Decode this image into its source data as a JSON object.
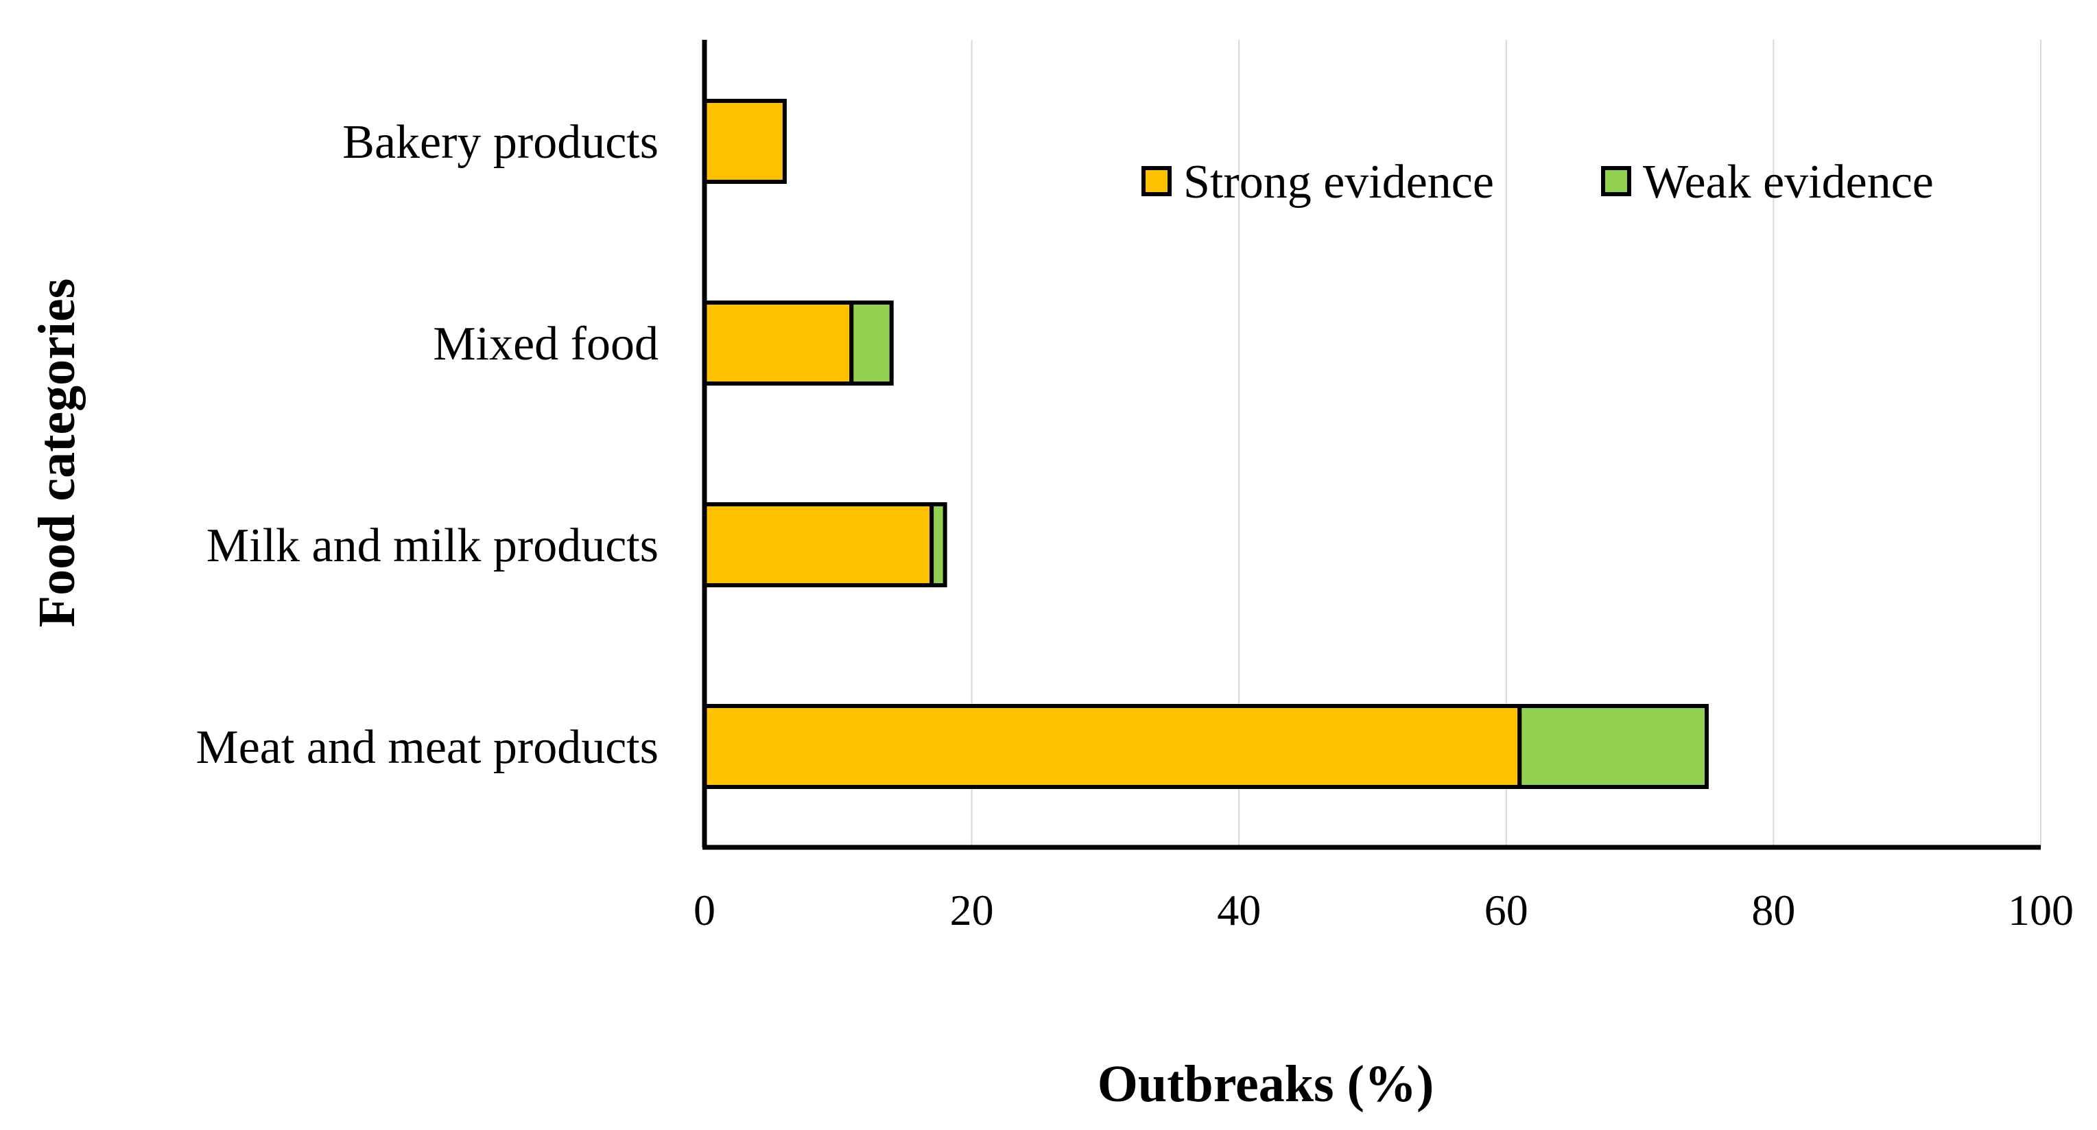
{
  "chart_data": {
    "type": "bar",
    "orientation": "horizontal",
    "stacked": true,
    "title": "",
    "xlabel": "Outbreaks (%)",
    "ylabel": "Food categories",
    "xlim": [
      0,
      100
    ],
    "xticks": [
      0,
      20,
      40,
      60,
      80,
      100
    ],
    "grid": "vertical",
    "legend_position": "top-right",
    "categories": [
      "Meat and meat products",
      "Milk and milk products",
      "Mixed food",
      "Bakery products"
    ],
    "series": [
      {
        "name": "Strong evidence",
        "color": "#FFC000",
        "values": [
          61,
          17,
          11,
          6
        ]
      },
      {
        "name": "Weak evidence",
        "color": "#92D050",
        "values": [
          14,
          1,
          3,
          0
        ]
      }
    ]
  }
}
